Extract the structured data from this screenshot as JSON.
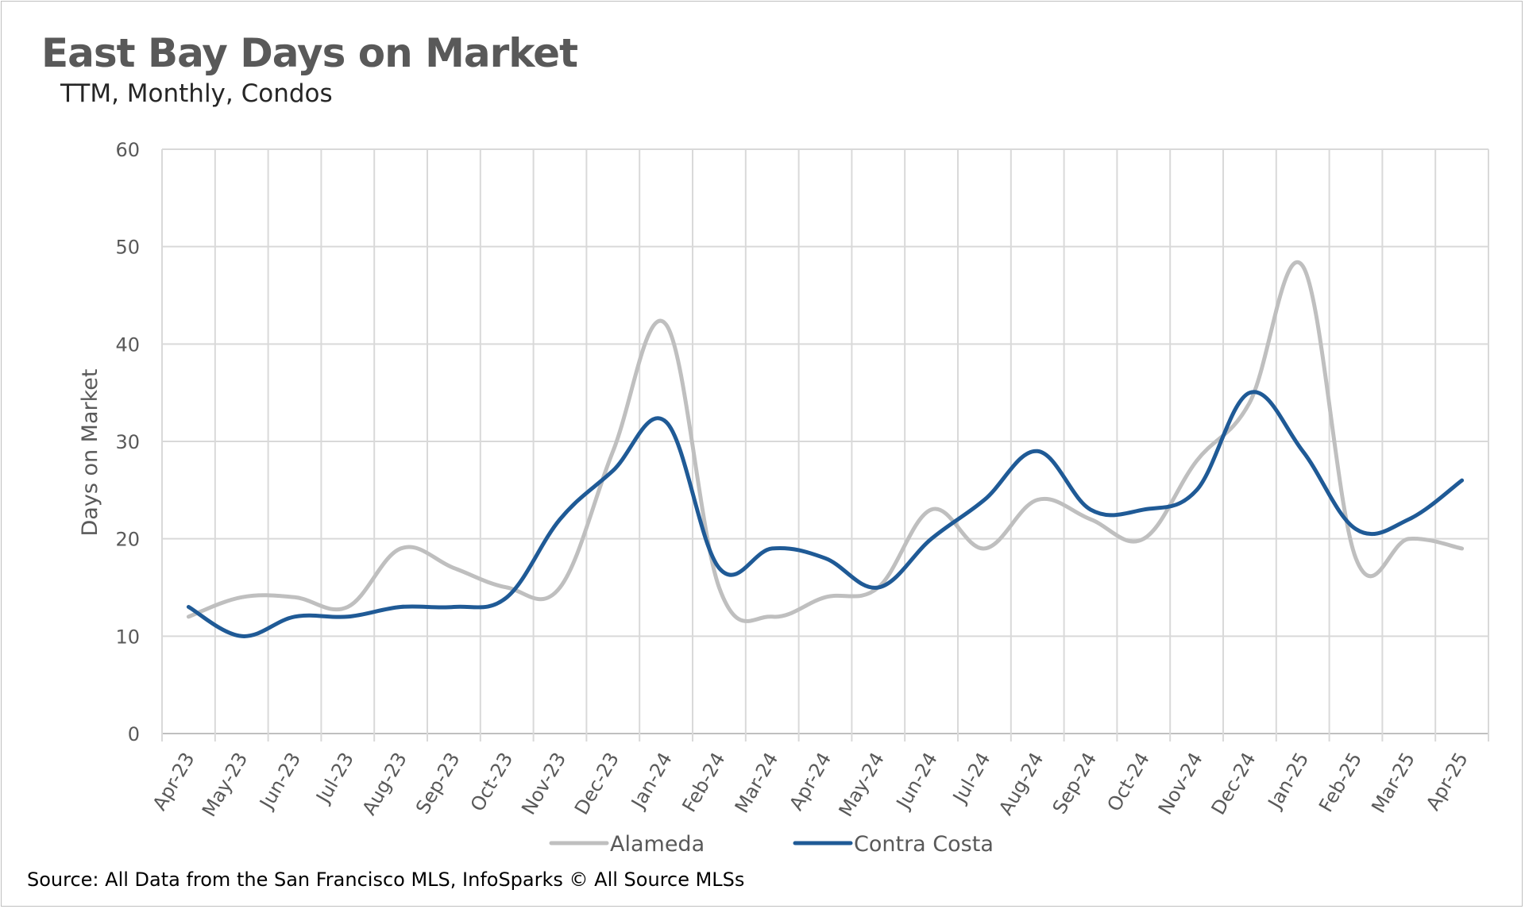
{
  "chart_data": {
    "type": "line",
    "title": "East Bay Days on Market",
    "subtitle": "TTM, Monthly, Condos",
    "ylabel": "Days on Market",
    "xlabel": "",
    "ylim": [
      0,
      60
    ],
    "yticks": [
      "0",
      "10",
      "20",
      "30",
      "40",
      "50",
      "60"
    ],
    "grid": true,
    "legend_position": "bottom",
    "categories": [
      "Apr-23",
      "May-23",
      "Jun-23",
      "Jul-23",
      "Aug-23",
      "Sep-23",
      "Oct-23",
      "Nov-23",
      "Dec-23",
      "Jan-24",
      "Feb-24",
      "Mar-24",
      "Apr-24",
      "May-24",
      "Jun-24",
      "Jul-24",
      "Aug-24",
      "Sep-24",
      "Oct-24",
      "Nov-24",
      "Dec-24",
      "Jan-25",
      "Feb-25",
      "Mar-25",
      "Apr-25"
    ],
    "series": [
      {
        "name": "Alameda",
        "color": "#bfbfbf",
        "values": [
          12,
          14,
          14,
          13,
          19,
          17,
          15,
          15,
          29,
          42,
          15,
          12,
          14,
          15,
          23,
          19,
          24,
          22,
          20,
          28,
          34,
          48,
          18,
          20,
          19
        ]
      },
      {
        "name": "Contra Costa",
        "color": "#1f5a96",
        "values": [
          13,
          10,
          12,
          12,
          13,
          13,
          14,
          22,
          27,
          32,
          17,
          19,
          18,
          15,
          20,
          24,
          29,
          23,
          23,
          25,
          35,
          29,
          21,
          22,
          26
        ]
      }
    ]
  },
  "footer": {
    "source": "Source: All Data from the San Francisco MLS, InfoSparks © All Source MLSs"
  }
}
